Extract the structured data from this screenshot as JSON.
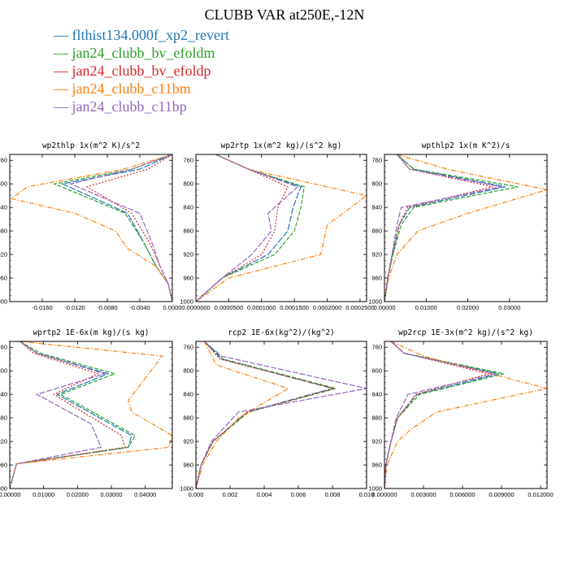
{
  "title": "CLUBB VAR at250E,-12N",
  "legend": [
    {
      "label": "flthist134.000f_xp2_revert",
      "color": "#1f77b4",
      "marker": "—"
    },
    {
      "label": "jan24_clubb_bv_efoldm",
      "color": "#2ca02c",
      "marker": "—"
    },
    {
      "label": "jan24_clubb_bv_efoldp",
      "color": "#d62728",
      "marker": "—"
    },
    {
      "label": "jan24_clubb_c11bm",
      "color": "#ff7f0e",
      "marker": "—"
    },
    {
      "label": "jan24_clubb_c11bp",
      "color": "#9467bd",
      "marker": "—"
    }
  ],
  "chart_data": [
    {
      "type": "line",
      "title": "wp2thlp  1x(m^2 K)/s^2",
      "xlim": [
        -0.02,
        0.0
      ],
      "ylim": [
        1000,
        750
      ],
      "xticks": [
        -0.016,
        -0.012,
        -0.008,
        -0.004,
        0.0
      ],
      "xtick_labels": [
        "-0.0160",
        "-0.0120",
        "-0.0080",
        "-0.0040",
        "0.0000"
      ],
      "yticks": [
        760,
        800,
        840,
        880,
        920,
        960,
        1000
      ],
      "series": [
        {
          "color": "#1f77b4",
          "y": [
            750,
            775,
            800,
            850,
            900,
            940,
            970,
            1000
          ],
          "x": [
            0.0,
            -0.004,
            -0.0135,
            -0.0055,
            -0.0035,
            -0.002,
            -0.0005,
            0.0
          ]
        },
        {
          "color": "#2ca02c",
          "y": [
            750,
            775,
            800,
            850,
            900,
            940,
            970,
            1000
          ],
          "x": [
            0.0,
            -0.005,
            -0.0145,
            -0.0058,
            -0.0035,
            -0.002,
            -0.0005,
            0.0
          ]
        },
        {
          "color": "#d62728",
          "y": [
            750,
            775,
            805,
            850,
            900,
            940,
            970,
            1000
          ],
          "x": [
            0.0,
            -0.003,
            -0.0105,
            -0.005,
            -0.0028,
            -0.0015,
            -0.0005,
            0.0
          ]
        },
        {
          "color": "#ff7f0e",
          "y": [
            750,
            775,
            805,
            825,
            850,
            880,
            910,
            940,
            970,
            1000
          ],
          "x": [
            0.0,
            -0.006,
            -0.0178,
            -0.0198,
            -0.012,
            -0.007,
            -0.0055,
            -0.002,
            -0.0005,
            0.0
          ]
        },
        {
          "color": "#9467bd",
          "y": [
            750,
            775,
            800,
            850,
            900,
            940,
            970,
            1000
          ],
          "x": [
            0.0,
            -0.005,
            -0.0125,
            -0.004,
            -0.0025,
            -0.0015,
            -0.0005,
            0.0
          ]
        }
      ]
    },
    {
      "type": "line",
      "title": "wp2rtp  1x(m^2 kg)/(s^2 kg)",
      "xlim": [
        0.0,
        0.00026
      ],
      "ylim": [
        1000,
        750
      ],
      "xticks": [
        0.0,
        5e-05,
        0.0001,
        0.00015,
        0.0002,
        0.00025
      ],
      "xtick_labels": [
        "0.0000000",
        "0.0000500",
        "0.0001000",
        "0.0001500",
        "0.0002000",
        "0.0002500"
      ],
      "yticks": [
        760,
        800,
        840,
        880,
        920,
        960,
        1000
      ],
      "series": [
        {
          "color": "#1f77b4",
          "y": [
            750,
            775,
            805,
            840,
            880,
            920,
            960,
            1000
          ],
          "x": [
            3e-05,
            8e-05,
            0.00016,
            0.000148,
            0.00014,
            0.00011,
            4e-05,
            0.0
          ]
        },
        {
          "color": "#2ca02c",
          "y": [
            750,
            775,
            805,
            840,
            880,
            920,
            960,
            1000
          ],
          "x": [
            3e-05,
            8e-05,
            0.000165,
            0.00016,
            0.00015,
            0.00012,
            4e-05,
            0.0
          ]
        },
        {
          "color": "#d62728",
          "y": [
            750,
            775,
            805,
            840,
            880,
            920,
            960,
            1000
          ],
          "x": [
            3e-05,
            8e-05,
            0.00014,
            0.000125,
            0.00012,
            0.0001,
            4e-05,
            0.0
          ]
        },
        {
          "color": "#ff7f0e",
          "y": [
            750,
            775,
            820,
            870,
            920,
            960,
            1000
          ],
          "x": [
            3e-05,
            8e-05,
            0.00026,
            0.0002,
            0.00019,
            5e-05,
            0.0
          ]
        },
        {
          "color": "#9467bd",
          "y": [
            750,
            775,
            805,
            850,
            880,
            920,
            960,
            1000
          ],
          "x": [
            3e-05,
            8e-05,
            0.000155,
            0.00011,
            0.000115,
            8.5e-05,
            4e-05,
            0.0
          ]
        }
      ]
    },
    {
      "type": "line",
      "title": "wpthlp2  1x(m K^2)/s",
      "xlim": [
        0.0,
        0.039
      ],
      "ylim": [
        1000,
        750
      ],
      "xticks": [
        0.0,
        0.01,
        0.02,
        0.03
      ],
      "xtick_labels": [
        "0.00000",
        "0.01000",
        "0.02000",
        "0.03000"
      ],
      "yticks": [
        760,
        800,
        840,
        880,
        920,
        960,
        1000
      ],
      "series": [
        {
          "color": "#1f77b4",
          "y": [
            750,
            775,
            805,
            840,
            870,
            920,
            960,
            1000
          ],
          "x": [
            0.003,
            0.007,
            0.029,
            0.006,
            0.0035,
            0.002,
            0.0008,
            0.0
          ]
        },
        {
          "color": "#2ca02c",
          "y": [
            750,
            775,
            805,
            840,
            870,
            920,
            960,
            1000
          ],
          "x": [
            0.003,
            0.007,
            0.032,
            0.007,
            0.004,
            0.002,
            0.0008,
            0.0
          ]
        },
        {
          "color": "#d62728",
          "y": [
            750,
            775,
            805,
            840,
            870,
            920,
            960,
            1000
          ],
          "x": [
            0.003,
            0.006,
            0.026,
            0.0055,
            0.0035,
            0.0018,
            0.0008,
            0.0
          ]
        },
        {
          "color": "#ff7f0e",
          "y": [
            750,
            775,
            810,
            850,
            880,
            920,
            960,
            1000
          ],
          "x": [
            0.003,
            0.015,
            0.039,
            0.02,
            0.008,
            0.003,
            0.001,
            0.0
          ]
        },
        {
          "color": "#9467bd",
          "y": [
            750,
            775,
            805,
            840,
            870,
            920,
            960,
            1000
          ],
          "x": [
            0.003,
            0.006,
            0.028,
            0.004,
            0.003,
            0.0018,
            0.0008,
            0.0
          ]
        }
      ]
    },
    {
      "type": "line",
      "title": "wprtp2  1E-6x(m kg)/(s kg)",
      "xlim": [
        0.0,
        0.048
      ],
      "ylim": [
        1000,
        750
      ],
      "xticks": [
        0.0,
        0.01,
        0.02,
        0.03,
        0.04
      ],
      "xtick_labels": [
        "0.00000",
        "0.01000",
        "0.02000",
        "0.03000",
        "0.04000"
      ],
      "yticks": [
        760,
        800,
        840,
        880,
        920,
        960,
        1000
      ],
      "series": [
        {
          "color": "#1f77b4",
          "y": [
            750,
            770,
            805,
            840,
            910,
            930,
            958,
            1000
          ],
          "x": [
            0.003,
            0.008,
            0.029,
            0.014,
            0.036,
            0.035,
            0.002,
            0.0
          ]
        },
        {
          "color": "#2ca02c",
          "y": [
            750,
            770,
            805,
            840,
            910,
            930,
            958,
            1000
          ],
          "x": [
            0.003,
            0.009,
            0.031,
            0.015,
            0.037,
            0.035,
            0.002,
            0.0
          ]
        },
        {
          "color": "#d62728",
          "y": [
            750,
            770,
            805,
            840,
            910,
            930,
            958,
            1000
          ],
          "x": [
            0.003,
            0.007,
            0.026,
            0.013,
            0.033,
            0.034,
            0.002,
            0.0
          ]
        },
        {
          "color": "#ff7f0e",
          "y": [
            750,
            775,
            850,
            870,
            910,
            930,
            958,
            1000
          ],
          "x": [
            0.003,
            0.045,
            0.035,
            0.036,
            0.048,
            0.047,
            0.002,
            0.0
          ]
        },
        {
          "color": "#9467bd",
          "y": [
            750,
            770,
            805,
            840,
            890,
            930,
            958,
            1000
          ],
          "x": [
            0.003,
            0.008,
            0.028,
            0.008,
            0.024,
            0.027,
            0.002,
            0.0
          ]
        }
      ]
    },
    {
      "type": "line",
      "title": "rcp2  1E-6x(kg^2)/(kg^2)",
      "xlim": [
        0.0,
        0.01
      ],
      "ylim": [
        1000,
        750
      ],
      "xticks": [
        0.0,
        0.002,
        0.004,
        0.006,
        0.008,
        0.01
      ],
      "xtick_labels": [
        "0.000",
        "0.002",
        "0.004",
        "0.006",
        "0.008",
        "0.010"
      ],
      "yticks": [
        760,
        800,
        840,
        880,
        920,
        960,
        1000
      ],
      "series": [
        {
          "color": "#1f77b4",
          "y": [
            750,
            780,
            830,
            870,
            920,
            960,
            1000
          ],
          "x": [
            0.0005,
            0.0015,
            0.008,
            0.003,
            0.001,
            0.0003,
            0.0
          ]
        },
        {
          "color": "#2ca02c",
          "y": [
            750,
            780,
            830,
            870,
            920,
            960,
            1000
          ],
          "x": [
            0.0005,
            0.0016,
            0.0082,
            0.0031,
            0.001,
            0.0003,
            0.0
          ]
        },
        {
          "color": "#d62728",
          "y": [
            750,
            780,
            830,
            870,
            920,
            960,
            1000
          ],
          "x": [
            0.0005,
            0.0014,
            0.0081,
            0.003,
            0.001,
            0.0003,
            0.0
          ]
        },
        {
          "color": "#ff7f0e",
          "y": [
            750,
            790,
            830,
            880,
            920,
            960,
            1000
          ],
          "x": [
            0.0005,
            0.0012,
            0.0054,
            0.0025,
            0.0012,
            0.0004,
            0.0
          ]
        },
        {
          "color": "#9467bd",
          "y": [
            750,
            775,
            830,
            870,
            920,
            960,
            1000
          ],
          "x": [
            0.0005,
            0.0015,
            0.01,
            0.0025,
            0.0009,
            0.0003,
            0.0
          ]
        }
      ]
    },
    {
      "type": "line",
      "title": "wp2rcp  1E-3x(m^2 kg)/(s^2 kg)",
      "xlim": [
        0.0,
        0.0125
      ],
      "ylim": [
        1000,
        750
      ],
      "xticks": [
        0.0,
        0.003,
        0.006,
        0.009,
        0.012
      ],
      "xtick_labels": [
        "0.000000",
        "0.003000",
        "0.006000",
        "0.009000",
        "0.012000"
      ],
      "yticks": [
        760,
        800,
        840,
        880,
        920,
        960,
        1000
      ],
      "series": [
        {
          "color": "#1f77b4",
          "y": [
            750,
            770,
            805,
            840,
            880,
            920,
            960,
            1000
          ],
          "x": [
            0.0005,
            0.0015,
            0.0088,
            0.0025,
            0.001,
            0.0005,
            0.0001,
            0.0
          ]
        },
        {
          "color": "#2ca02c",
          "y": [
            750,
            770,
            805,
            840,
            880,
            920,
            960,
            1000
          ],
          "x": [
            0.0005,
            0.0015,
            0.0092,
            0.0027,
            0.001,
            0.0005,
            0.0001,
            0.0
          ]
        },
        {
          "color": "#d62728",
          "y": [
            750,
            770,
            805,
            840,
            880,
            920,
            960,
            1000
          ],
          "x": [
            0.0005,
            0.0015,
            0.008,
            0.0024,
            0.001,
            0.0005,
            0.0001,
            0.0
          ]
        },
        {
          "color": "#ff7f0e",
          "y": [
            750,
            775,
            830,
            870,
            900,
            920,
            960,
            1000
          ],
          "x": [
            0.0005,
            0.003,
            0.0125,
            0.004,
            0.002,
            0.001,
            0.0002,
            0.0
          ]
        },
        {
          "color": "#9467bd",
          "y": [
            750,
            770,
            805,
            840,
            880,
            920,
            960,
            1000
          ],
          "x": [
            0.0005,
            0.0015,
            0.0085,
            0.0018,
            0.0009,
            0.0005,
            0.0001,
            0.0
          ]
        }
      ]
    }
  ]
}
